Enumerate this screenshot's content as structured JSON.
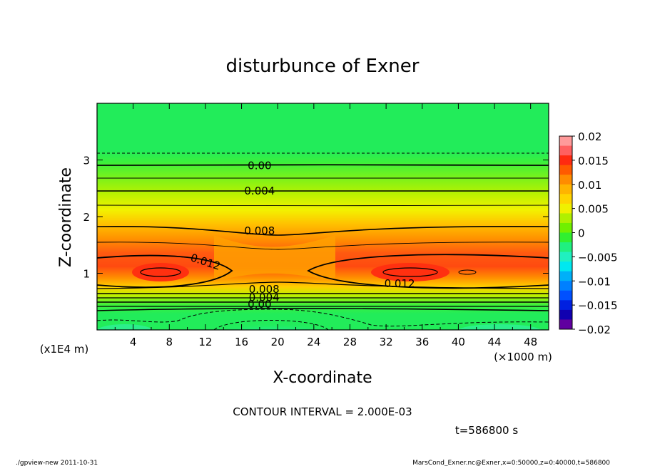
{
  "chart_data": {
    "type": "contour",
    "title": "disturbunce of Exner",
    "xlabel": "X-coordinate",
    "ylabel": "Z-coordinate",
    "x_unit": "(×1000 m)",
    "y_unit": "(x1E4 m)",
    "xlim": [
      0,
      50
    ],
    "ylim": [
      0,
      4
    ],
    "x_ticks": [
      "4",
      "8",
      "12",
      "16",
      "20",
      "24",
      "28",
      "32",
      "36",
      "40",
      "44",
      "48"
    ],
    "y_ticks": [
      "1",
      "2",
      "3"
    ],
    "colorbar": {
      "ticks": [
        "0.02",
        "0.015",
        "0.01",
        "0.005",
        "0",
        "−0.005",
        "−0.01",
        "−0.015",
        "−0.02"
      ],
      "range": [
        -0.02,
        0.02
      ]
    },
    "contour_labels": [
      {
        "text": "0.00",
        "x": 18,
        "z": 2.9
      },
      {
        "text": "0.004",
        "x": 18,
        "z": 2.45
      },
      {
        "text": "0.008",
        "x": 18,
        "z": 1.75
      },
      {
        "text": "0.012",
        "x": 12,
        "z": 1.2
      },
      {
        "text": "0.012",
        "x": 33.5,
        "z": 0.82
      },
      {
        "text": "0.008",
        "x": 18.5,
        "z": 0.72
      },
      {
        "text": "0.004",
        "x": 18.5,
        "z": 0.57
      },
      {
        "text": "0.00",
        "x": 18,
        "z": 0.45
      }
    ],
    "contour_interval_text": "CONTOUR INTERVAL = 2.000E-03",
    "time_text": "t=586800 s"
  },
  "footer": {
    "left": "./gpview-new   2011-10-31",
    "right": "MarsCond_Exner.nc@Exner,x=0:50000,z=0:40000,t=586800"
  }
}
